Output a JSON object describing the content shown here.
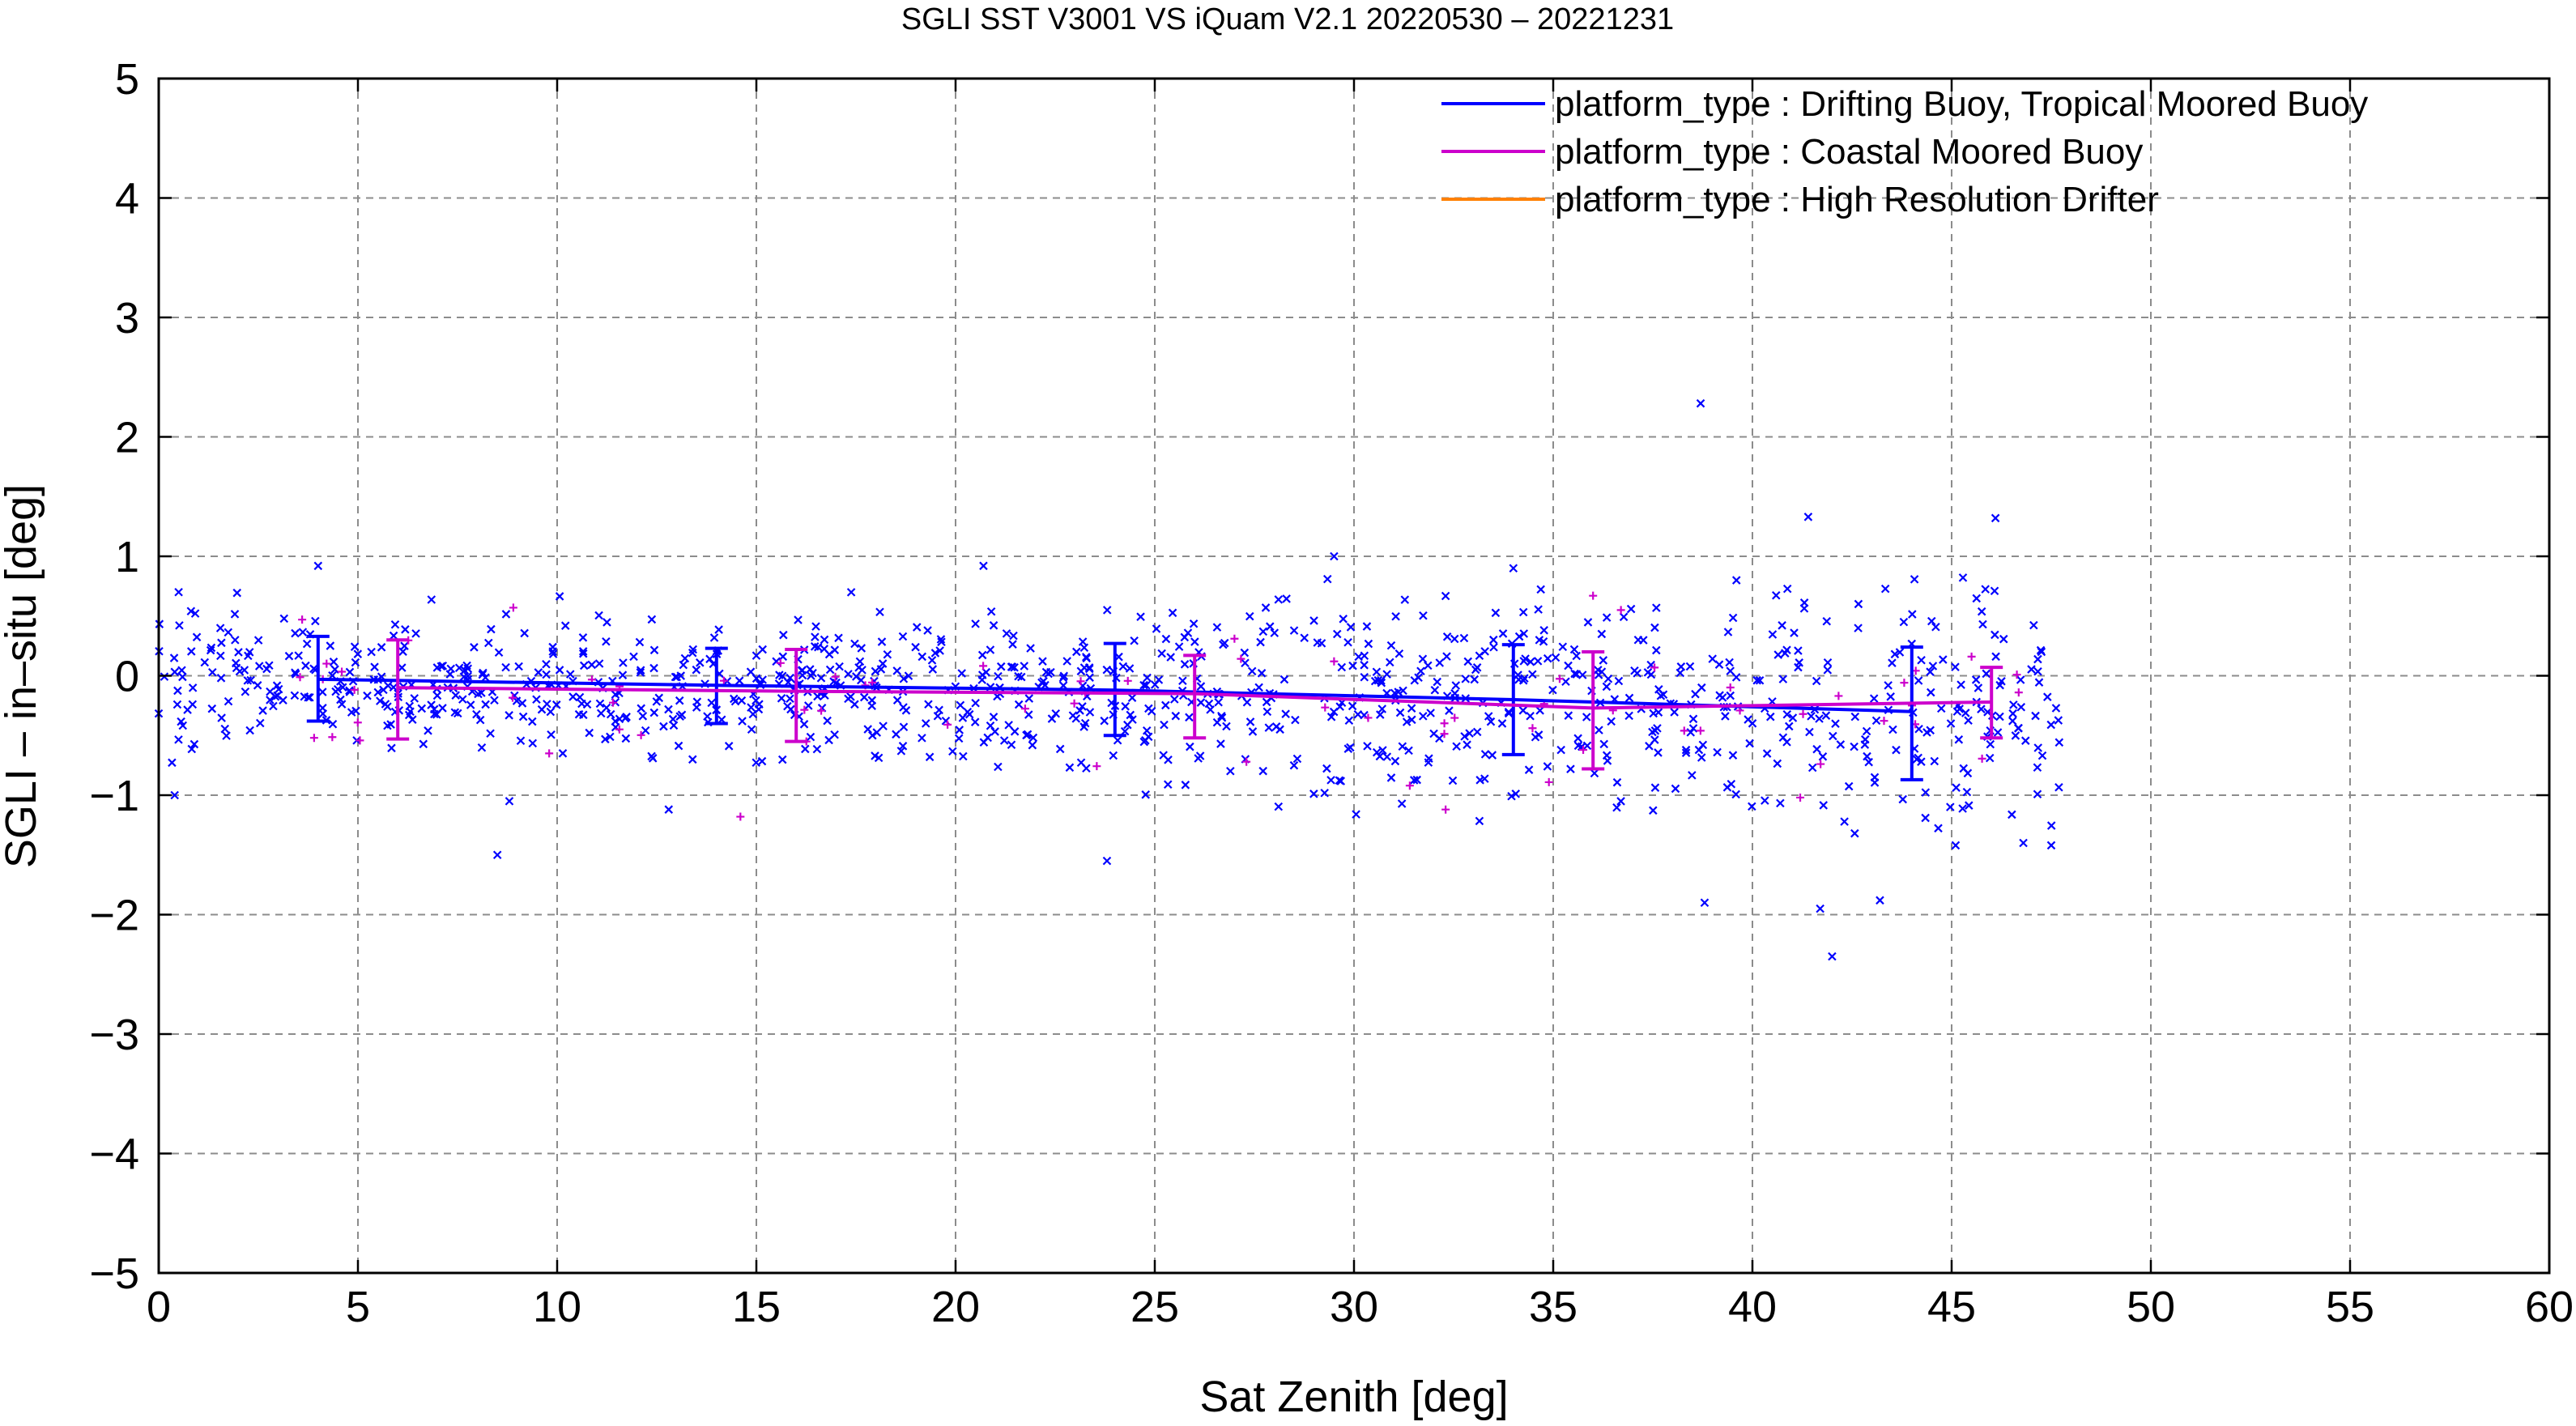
{
  "chart_data": {
    "type": "scatter",
    "title": "SGLI SST V3001 VS iQuam V2.1 20220530 – 20221231",
    "xlabel": "Sat Zenith [deg]",
    "ylabel": "SGLI – in–situ [deg]",
    "xlim": [
      0,
      60
    ],
    "ylim": [
      -5,
      5
    ],
    "xticks": [
      0,
      5,
      10,
      15,
      20,
      25,
      30,
      35,
      40,
      45,
      50,
      55,
      60
    ],
    "yticks": [
      5,
      4,
      3,
      2,
      1,
      0,
      -1,
      -2,
      -3,
      -4,
      -5
    ],
    "xtick_labels": [
      "0",
      "5",
      "10",
      "15",
      "20",
      "25",
      "30",
      "35",
      "40",
      "45",
      "50",
      "55",
      "60"
    ],
    "ytick_labels": [
      "5",
      "4",
      "3",
      "2",
      "1",
      "0",
      "−1",
      "−2",
      "−3",
      "−4",
      "−5"
    ],
    "grid": true,
    "legend_position": "top-right",
    "series": [
      {
        "name": "platform_type : Drifting Buoy, Tropical Moored Buoy",
        "color": "#0000ff",
        "marker": "x",
        "mean_line": {
          "x": [
            4,
            14,
            24,
            34,
            44
          ],
          "y": [
            -0.03,
            -0.08,
            -0.12,
            -0.2,
            -0.3
          ]
        },
        "error_bars": [
          {
            "x": 4,
            "low": -0.38,
            "high": 0.33
          },
          {
            "x": 14,
            "low": -0.4,
            "high": 0.23
          },
          {
            "x": 24,
            "low": -0.5,
            "high": 0.27
          },
          {
            "x": 34,
            "low": -0.66,
            "high": 0.26
          },
          {
            "x": 44,
            "low": -0.87,
            "high": 0.24
          }
        ],
        "outliers": [
          {
            "x": 0.4,
            "y": -1.0
          },
          {
            "x": 0.5,
            "y": 0.7
          },
          {
            "x": 4.0,
            "y": 0.92
          },
          {
            "x": 8.5,
            "y": -1.5
          },
          {
            "x": 8.8,
            "y": -1.05
          },
          {
            "x": 12.8,
            "y": -1.12
          },
          {
            "x": 20.7,
            "y": 0.92
          },
          {
            "x": 23.8,
            "y": -1.55
          },
          {
            "x": 29.5,
            "y": 1.0
          },
          {
            "x": 34.0,
            "y": 0.9
          },
          {
            "x": 38.7,
            "y": 2.28
          },
          {
            "x": 38.8,
            "y": -1.9
          },
          {
            "x": 41.4,
            "y": 1.33
          },
          {
            "x": 41.7,
            "y": -1.95
          },
          {
            "x": 42.0,
            "y": -2.35
          },
          {
            "x": 43.2,
            "y": -1.88
          },
          {
            "x": 46.1,
            "y": 1.32
          },
          {
            "x": 47.5,
            "y": -1.42
          },
          {
            "x": 46.8,
            "y": -1.4
          },
          {
            "x": 45.1,
            "y": -1.42
          }
        ]
      },
      {
        "name": "platform_type : Coastal Moored Buoy",
        "color": "#cc00cc",
        "marker": "+",
        "mean_line": {
          "x": [
            6,
            16,
            26,
            36,
            46
          ],
          "y": [
            -0.1,
            -0.13,
            -0.15,
            -0.27,
            -0.22
          ]
        },
        "error_bars": [
          {
            "x": 6,
            "low": -0.53,
            "high": 0.3
          },
          {
            "x": 16,
            "low": -0.55,
            "high": 0.22
          },
          {
            "x": 26,
            "low": -0.52,
            "high": 0.17
          },
          {
            "x": 36,
            "low": -0.78,
            "high": 0.2
          },
          {
            "x": 46,
            "low": -0.52,
            "high": 0.07
          }
        ],
        "outliers": [
          {
            "x": 3.6,
            "y": 0.47
          },
          {
            "x": 3.9,
            "y": -0.52
          },
          {
            "x": 8.9,
            "y": 0.57
          },
          {
            "x": 9.8,
            "y": -0.65
          },
          {
            "x": 14.6,
            "y": -1.18
          },
          {
            "x": 27.0,
            "y": 0.31
          },
          {
            "x": 27.3,
            "y": -0.72
          },
          {
            "x": 31.4,
            "y": -0.92
          },
          {
            "x": 32.3,
            "y": -1.12
          },
          {
            "x": 36.0,
            "y": 0.67
          },
          {
            "x": 36.7,
            "y": 0.55
          },
          {
            "x": 41.2,
            "y": -1.02
          },
          {
            "x": 45.5,
            "y": 0.16
          }
        ]
      },
      {
        "name": "platform_type : High Resolution Drifter",
        "color": "#ff8000",
        "marker": "+",
        "mean_line": {
          "x": [],
          "y": []
        },
        "error_bars": [],
        "outliers": []
      }
    ],
    "point_cloud": {
      "x_range": [
        0,
        47.7
      ],
      "center": {
        "x": [
          0,
          10,
          20,
          30,
          40,
          47.7
        ],
        "y": [
          0.0,
          -0.08,
          -0.15,
          -0.18,
          -0.28,
          -0.35
        ]
      },
      "spread_sd": {
        "x": [
          0,
          20,
          30,
          40,
          47.7
        ],
        "y": [
          0.28,
          0.3,
          0.4,
          0.45,
          0.5
        ]
      },
      "blue_count": 1100,
      "magenta_count": 60
    }
  }
}
